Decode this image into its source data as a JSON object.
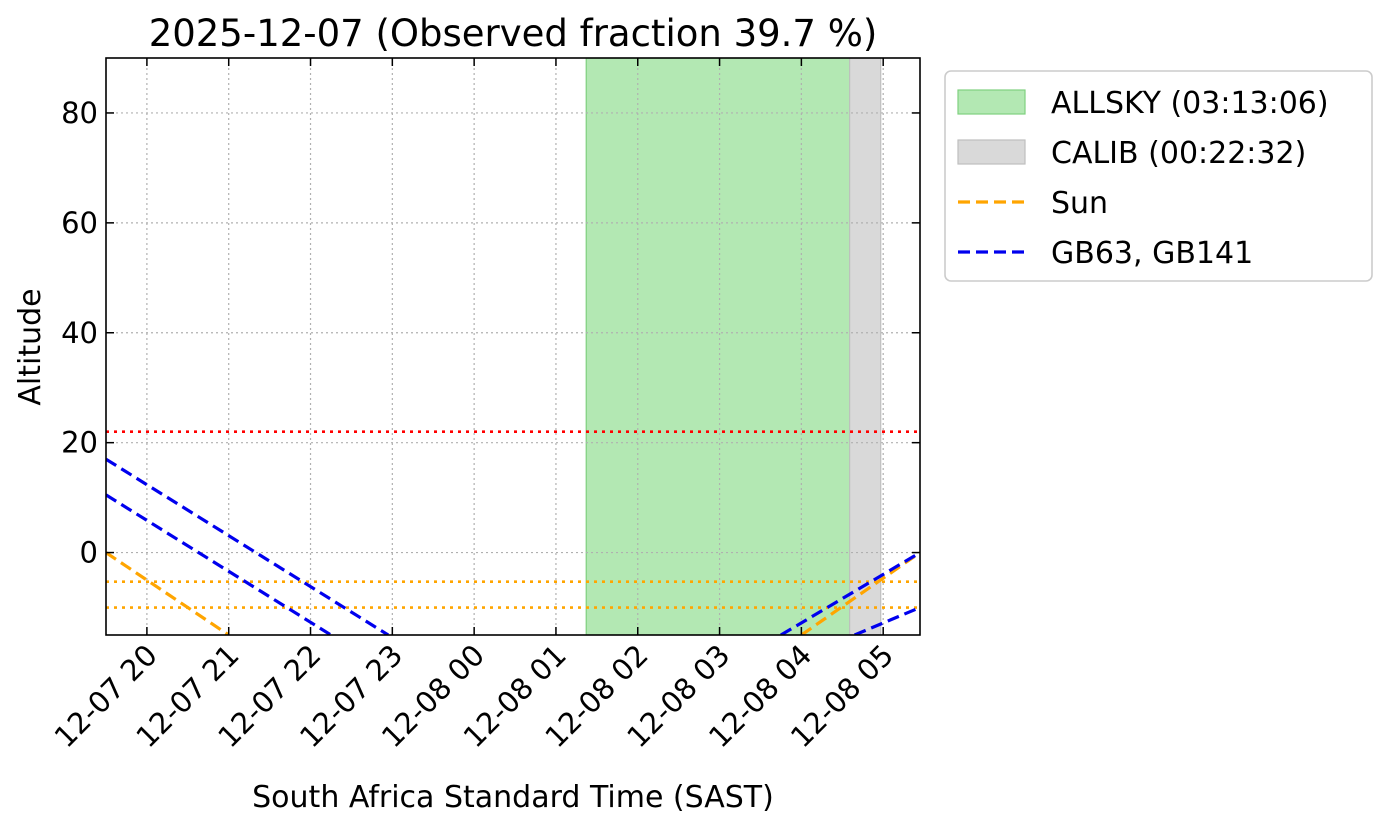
{
  "chart_data": {
    "type": "line",
    "title": "2025-12-07 (Observed fraction 39.7 %)",
    "xlabel": "South Africa Standard Time (SAST)",
    "ylabel": "Altitude",
    "x_range_hours": [
      19.5,
      29.45
    ],
    "ylim": [
      -15,
      90
    ],
    "x_ticks": [
      {
        "hour": 20,
        "label": "12-07 20"
      },
      {
        "hour": 21,
        "label": "12-07 21"
      },
      {
        "hour": 22,
        "label": "12-07 22"
      },
      {
        "hour": 23,
        "label": "12-07 23"
      },
      {
        "hour": 24,
        "label": "12-08 00"
      },
      {
        "hour": 25,
        "label": "12-08 01"
      },
      {
        "hour": 26,
        "label": "12-08 02"
      },
      {
        "hour": 27,
        "label": "12-08 03"
      },
      {
        "hour": 28,
        "label": "12-08 04"
      },
      {
        "hour": 29,
        "label": "12-08 05"
      }
    ],
    "y_ticks": [
      0,
      20,
      40,
      60,
      80
    ],
    "grid": true,
    "legend_position": "outside-right",
    "spans": [
      {
        "name": "ALLSKY (03:13:06)",
        "start_hour": 25.37,
        "end_hour": 28.59,
        "color": "#b3e8b3",
        "edge": "#7fd07f"
      },
      {
        "name": "CALIB (00:22:32)",
        "start_hour": 28.59,
        "end_hour": 28.97,
        "color": "#d9d9d9",
        "edge": "#bfbfbf"
      }
    ],
    "hlines": [
      {
        "y": 22,
        "color": "#ff0000",
        "style": "dotted"
      },
      {
        "y": -5.3,
        "color": "#ffa500",
        "style": "dotted"
      },
      {
        "y": -10,
        "color": "#ffa500",
        "style": "dotted"
      }
    ],
    "series": [
      {
        "name": "Sun",
        "color": "#ffa500",
        "style": "dashed",
        "segments": [
          [
            [
              19.5,
              0
            ],
            [
              21.0,
              -15
            ]
          ],
          [
            [
              28.0,
              -15
            ],
            [
              29.45,
              0
            ]
          ]
        ]
      },
      {
        "name": "GB63, GB141",
        "color": "#0000ee",
        "style": "dashed",
        "segments": [
          [
            [
              19.5,
              17
            ],
            [
              22.95,
              -15
            ]
          ],
          [
            [
              27.75,
              -15
            ],
            [
              29.45,
              0
            ]
          ]
        ]
      },
      {
        "name": "",
        "color": "#0000ee",
        "style": "dashed",
        "segments": [
          [
            [
              19.5,
              10.5
            ],
            [
              22.25,
              -15
            ]
          ],
          [
            [
              28.65,
              -15
            ],
            [
              29.45,
              -10
            ]
          ]
        ]
      }
    ],
    "legend": [
      {
        "kind": "patch",
        "label": "ALLSKY (03:13:06)",
        "color": "#b3e8b3",
        "edge": "#7fd07f"
      },
      {
        "kind": "patch",
        "label": "CALIB (00:22:32)",
        "color": "#d9d9d9",
        "edge": "#bfbfbf"
      },
      {
        "kind": "line",
        "label": "Sun",
        "color": "#ffa500"
      },
      {
        "kind": "line",
        "label": "GB63, GB141",
        "color": "#0000ee"
      }
    ]
  }
}
